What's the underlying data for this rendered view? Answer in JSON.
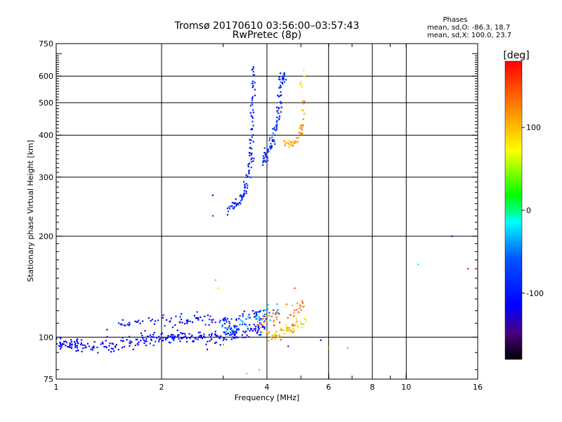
{
  "chart_data": {
    "type": "scatter",
    "title": "Tromsø 20170610 03:56:00–03:57:43",
    "subtitle": "RwPretec (8p)",
    "stats": {
      "header": "Phases",
      "line1": "mean, sd,O: -86.3, 18.7",
      "line2": "mean, sd,X: 100.0, 23.7"
    },
    "xlabel": "Frequency [MHz]",
    "ylabel": "Stationary phase Virtual Height [km]",
    "xscale": "log",
    "yscale": "log",
    "xlim": [
      1,
      16
    ],
    "ylim": [
      75,
      750
    ],
    "xticks": [
      {
        "v": 1,
        "label": "1"
      },
      {
        "v": 2,
        "label": "2"
      },
      {
        "v": 4,
        "label": "4"
      },
      {
        "v": 6,
        "label": "6"
      },
      {
        "v": 8,
        "label": "8"
      },
      {
        "v": 10,
        "label": "10"
      },
      {
        "v": 16,
        "label": "16"
      }
    ],
    "xgrid": [
      2,
      4,
      6,
      8,
      10
    ],
    "yticks": [
      {
        "v": 75,
        "label": "75"
      },
      {
        "v": 100,
        "label": "100"
      },
      {
        "v": 200,
        "label": "200"
      },
      {
        "v": 300,
        "label": "300"
      },
      {
        "v": 400,
        "label": "400"
      },
      {
        "v": 500,
        "label": "500"
      },
      {
        "v": 600,
        "label": "600"
      },
      {
        "v": 750,
        "label": "750"
      }
    ],
    "ygrid": [
      100,
      200,
      300,
      400,
      500,
      600
    ],
    "grid": true,
    "colorbar": {
      "label": "[deg]",
      "range": [
        -180,
        180
      ],
      "ticks": [
        {
          "v": 100,
          "label": "100"
        },
        {
          "v": 0,
          "label": "0"
        },
        {
          "v": -100,
          "label": "-100"
        }
      ]
    },
    "series": [
      {
        "curve": [
          [
            1.0,
            97
          ],
          [
            1.1,
            95
          ],
          [
            1.2,
            94
          ],
          [
            1.35,
            95
          ],
          [
            1.5,
            96
          ],
          [
            1.7,
            98
          ],
          [
            1.9,
            99
          ],
          [
            2.1,
            100
          ],
          [
            2.3,
            101
          ],
          [
            2.6,
            100
          ],
          [
            2.9,
            100
          ],
          [
            3.2,
            102
          ],
          [
            3.6,
            104
          ],
          [
            3.9,
            106
          ]
        ],
        "count": 300,
        "phase": -110,
        "jit": 0.035,
        "phaseJit": 12
      },
      {
        "curve": [
          [
            1.4,
            108
          ],
          [
            1.7,
            110
          ],
          [
            2.0,
            112
          ],
          [
            2.3,
            113
          ],
          [
            2.6,
            113
          ],
          [
            2.9,
            112
          ],
          [
            3.2,
            112
          ],
          [
            3.6,
            116
          ],
          [
            3.9,
            118
          ]
        ],
        "count": 110,
        "phase": -100,
        "jit": 0.03,
        "phaseJit": 20
      },
      {
        "curve": [
          [
            3.0,
            104
          ],
          [
            3.3,
            108
          ],
          [
            3.7,
            113
          ],
          [
            4.0,
            118
          ],
          [
            4.3,
            122
          ]
        ],
        "count": 50,
        "phase": -40,
        "jit": 0.035,
        "phaseJit": 30
      },
      {
        "curve": [
          [
            3.9,
            102
          ],
          [
            4.1,
            100
          ],
          [
            4.4,
            102
          ],
          [
            4.6,
            105
          ],
          [
            4.8,
            108
          ],
          [
            5.1,
            112
          ]
        ],
        "count": 60,
        "phase": 100,
        "jit": 0.03,
        "phaseJit": 30
      },
      {
        "curve": [
          [
            3.7,
            110
          ],
          [
            4.0,
            112
          ],
          [
            4.3,
            115
          ],
          [
            4.6,
            118
          ],
          [
            4.9,
            122
          ],
          [
            5.1,
            125
          ]
        ],
        "count": 40,
        "phase": 135,
        "jit": 0.04,
        "phaseJit": 30
      },
      {
        "curve": [
          [
            3.05,
            240
          ],
          [
            3.2,
            246
          ],
          [
            3.35,
            256
          ],
          [
            3.45,
            270
          ],
          [
            3.52,
            290
          ],
          [
            3.57,
            320
          ],
          [
            3.6,
            360
          ],
          [
            3.63,
            420
          ],
          [
            3.65,
            520
          ],
          [
            3.66,
            640
          ]
        ],
        "count": 110,
        "phase": -95,
        "jit": 0.02,
        "phaseJit": 18
      },
      {
        "curve": [
          [
            3.9,
            335
          ],
          [
            4.0,
            350
          ],
          [
            4.1,
            370
          ],
          [
            4.2,
            400
          ],
          [
            4.3,
            450
          ],
          [
            4.35,
            520
          ],
          [
            4.4,
            580
          ],
          [
            4.45,
            630
          ]
        ],
        "count": 100,
        "phase": -85,
        "jit": 0.025,
        "phaseJit": 28
      },
      {
        "curve": [
          [
            4.5,
            380
          ],
          [
            4.65,
            375
          ],
          [
            4.8,
            378
          ],
          [
            4.95,
            386
          ],
          [
            5.02,
            410
          ],
          [
            5.06,
            460
          ],
          [
            5.1,
            520
          ]
        ],
        "count": 45,
        "phase": 115,
        "jit": 0.02,
        "phaseJit": 20
      },
      {
        "curve": [
          [
            5.0,
            560
          ],
          [
            5.05,
            600
          ],
          [
            5.07,
            630
          ]
        ],
        "count": 6,
        "phase": 80,
        "jit": 0.02,
        "phaseJit": 15
      }
    ],
    "points": [
      {
        "x": 2.8,
        "y": 265,
        "phase": -110
      },
      {
        "x": 2.8,
        "y": 230,
        "phase": -60
      },
      {
        "x": 2.85,
        "y": 148,
        "phase": -10
      },
      {
        "x": 2.9,
        "y": 140,
        "phase": 60
      },
      {
        "x": 3.0,
        "y": 95,
        "phase": 20
      },
      {
        "x": 3.5,
        "y": 78,
        "phase": 100
      },
      {
        "x": 3.8,
        "y": 80,
        "phase": 110
      },
      {
        "x": 4.6,
        "y": 94,
        "phase": -100
      },
      {
        "x": 5.7,
        "y": 98,
        "phase": -110
      },
      {
        "x": 6.0,
        "y": 93,
        "phase": 120
      },
      {
        "x": 6.8,
        "y": 93,
        "phase": -20
      },
      {
        "x": 10.8,
        "y": 165,
        "phase": -15
      },
      {
        "x": 13.5,
        "y": 200,
        "phase": -110
      },
      {
        "x": 15.0,
        "y": 160,
        "phase": 170
      },
      {
        "x": 2.7,
        "y": 92,
        "phase": -150
      },
      {
        "x": 4.8,
        "y": 140,
        "phase": 150
      }
    ]
  }
}
